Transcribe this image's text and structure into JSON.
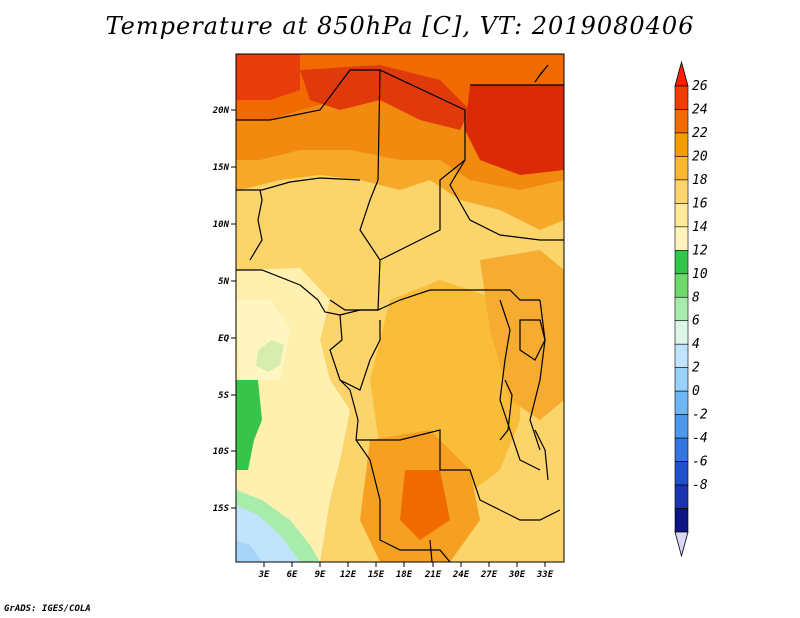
{
  "title": "Temperature at 850hPa [C], VT: 2019080406",
  "footer": "GrADS: IGES/COLA",
  "map": {
    "lat_labels": [
      "20N",
      "15N",
      "10N",
      "5N",
      "EQ",
      "5S",
      "10S",
      "15S"
    ],
    "lon_labels": [
      "3E",
      "6E",
      "9E",
      "12E",
      "15E",
      "18E",
      "21E",
      "24E",
      "27E",
      "30E",
      "33E"
    ]
  },
  "colorbar": {
    "labels": [
      "26",
      "24",
      "22",
      "20",
      "18",
      "16",
      "14",
      "12",
      "10",
      "8",
      "6",
      "4",
      "2",
      "0",
      "-2",
      "-4",
      "-6",
      "-8"
    ],
    "colors": [
      "#ff1e00",
      "#f03c00",
      "#f06a00",
      "#f29e00",
      "#f8b830",
      "#fcd46c",
      "#fde99a",
      "#fef3bd",
      "#33c44a",
      "#6ed86a",
      "#a8ecac",
      "#dcf6e8",
      "#bfe4fb",
      "#98d1fa",
      "#6fb6f4",
      "#4f97ec",
      "#3274e0",
      "#1f51cc",
      "#1a34b0",
      "#0c1582",
      "#d8d8f5"
    ]
  },
  "colors": {
    "hot_red": "#e01e0e",
    "orange": "#f06a00",
    "light_orange": "#f8b830",
    "pale_yellow": "#fde99a",
    "very_pale": "#fff6c0",
    "green": "#38c44a",
    "light_green": "#a8ecac",
    "light_blue": "#a8d4fa"
  }
}
